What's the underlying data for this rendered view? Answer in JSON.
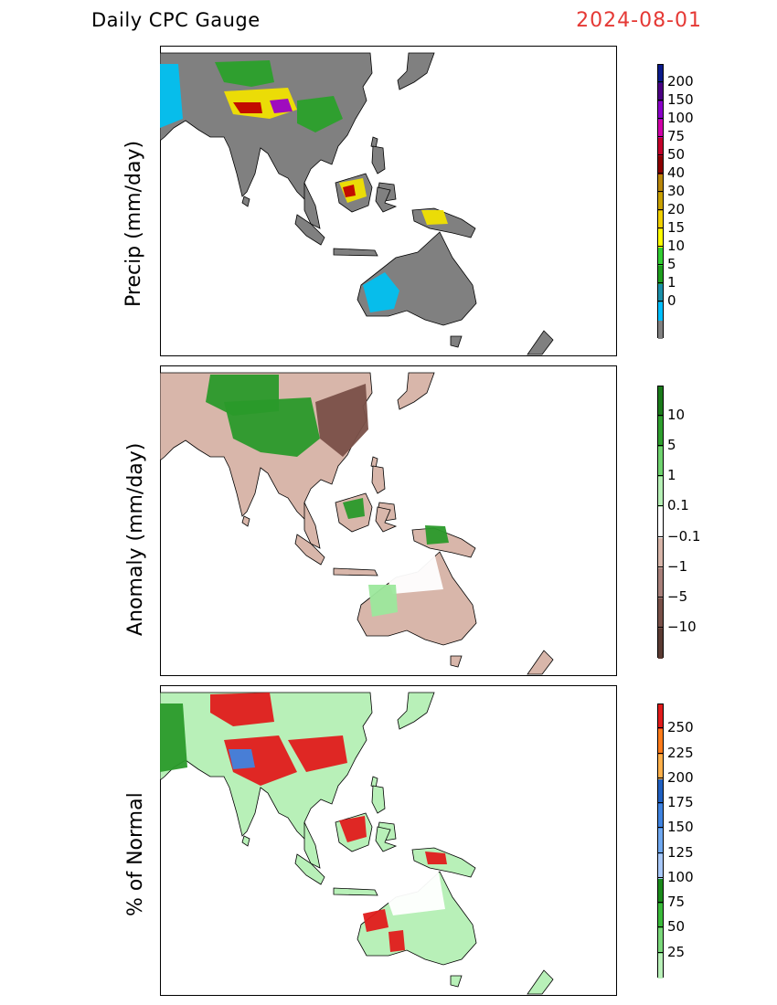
{
  "header": {
    "title": "Daily CPC Gauge",
    "date": "2024-08-01"
  },
  "panels": [
    {
      "id": "precip",
      "ylabel": "Precip (mm/day)",
      "colorbar": {
        "colors": [
          "#0b1a8a",
          "#4b0082",
          "#8a00c8",
          "#d000a8",
          "#c2002a",
          "#8b0000",
          "#b8860b",
          "#c8a000",
          "#f0d000",
          "#ffff00",
          "#32cd32",
          "#1e9e1e",
          "#1a8fa8",
          "#00bfff",
          "#808080"
        ],
        "labels": [
          "200",
          "150",
          "100",
          "75",
          "50",
          "40",
          "30",
          "20",
          "15",
          "10",
          "5",
          "1",
          "0"
        ]
      },
      "land": "#808080",
      "accent": [
        "#00c0f0",
        "#2aa02a",
        "#f0e000",
        "#c00000",
        "#9b00c8"
      ]
    },
    {
      "id": "anomaly",
      "ylabel": "Anomaly (mm/day)",
      "colorbar": {
        "colors": [
          "#1a7a1a",
          "#2e9e2e",
          "#6fd36f",
          "#b6f0b6",
          "#ffffff",
          "#d8b6aa",
          "#a8807a",
          "#785048",
          "#5a3a32"
        ],
        "labels": [
          "10",
          "5",
          "1",
          "0.1",
          "−0.1",
          "−1",
          "−5",
          "−10"
        ]
      },
      "land": "#d8b6aa",
      "accent": [
        "#2a9a2a",
        "#7a5048",
        "#ffffff",
        "#9ce89c"
      ]
    },
    {
      "id": "percent",
      "ylabel": "% of Normal",
      "colorbar": {
        "colors": [
          "#e01b1b",
          "#ff7b1a",
          "#ffb04a",
          "#1f5fc0",
          "#3f83e0",
          "#6fa8f0",
          "#a8c8f8",
          "#1a8a1a",
          "#3aba3a",
          "#7ad87a",
          "#b8f0b8"
        ],
        "labels": [
          "250",
          "225",
          "200",
          "175",
          "150",
          "125",
          "100",
          "75",
          "50",
          "25"
        ]
      },
      "land": "#b8f0b8",
      "accent": [
        "#e01b1b",
        "#3f83e0",
        "#ffffff",
        "#2a9a2a"
      ]
    }
  ]
}
